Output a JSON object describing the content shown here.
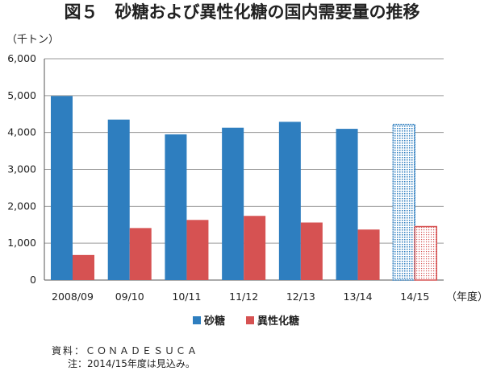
{
  "title": "図５　砂糖および異性化糖の国内需要量の推移",
  "source_note": "資料：ＣＯＮＡＤＥＳＵＣＡ",
  "footnote": "注：2014/15年度は見込み。",
  "colors": {
    "sugar": "#2e7ebf",
    "hfcs": "#d65252",
    "grid": "#9a9a9a",
    "axis": "#555555"
  },
  "chart_data": {
    "type": "bar",
    "title": "図５　砂糖および異性化糖の国内需要量の推移",
    "ylabel": "（千トン）",
    "xlabel": "（年度）",
    "categories": [
      "2008/09",
      "09/10",
      "10/11",
      "11/12",
      "12/13",
      "13/14",
      "14/15"
    ],
    "yticks": [
      "0",
      "1,000",
      "2,000",
      "3,000",
      "4,000",
      "5,000",
      "6,000"
    ],
    "ylim": [
      0,
      6000
    ],
    "grid": true,
    "legend_position": "bottom",
    "estimated_category": "14/15",
    "series": [
      {
        "name": "砂糖",
        "values": [
          4990,
          4350,
          3950,
          4130,
          4290,
          4100,
          4220
        ]
      },
      {
        "name": "異性化糖",
        "values": [
          680,
          1410,
          1630,
          1740,
          1560,
          1370,
          1450
        ]
      }
    ]
  }
}
